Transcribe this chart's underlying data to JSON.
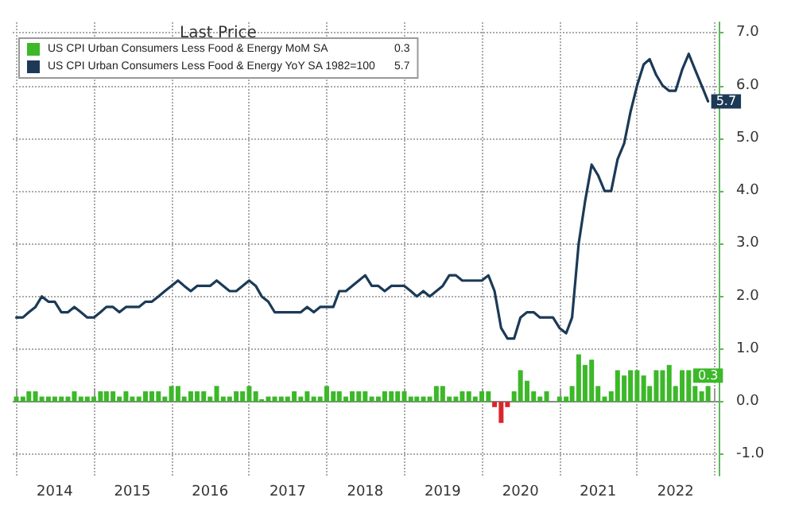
{
  "chart_data": {
    "type": "line",
    "legend_title": "Last Price",
    "x": [
      "2014-01",
      "2014-02",
      "2014-03",
      "2014-04",
      "2014-05",
      "2014-06",
      "2014-07",
      "2014-08",
      "2014-09",
      "2014-10",
      "2014-11",
      "2014-12",
      "2015-01",
      "2015-02",
      "2015-03",
      "2015-04",
      "2015-05",
      "2015-06",
      "2015-07",
      "2015-08",
      "2015-09",
      "2015-10",
      "2015-11",
      "2015-12",
      "2016-01",
      "2016-02",
      "2016-03",
      "2016-04",
      "2016-05",
      "2016-06",
      "2016-07",
      "2016-08",
      "2016-09",
      "2016-10",
      "2016-11",
      "2016-12",
      "2017-01",
      "2017-02",
      "2017-03",
      "2017-04",
      "2017-05",
      "2017-06",
      "2017-07",
      "2017-08",
      "2017-09",
      "2017-10",
      "2017-11",
      "2017-12",
      "2018-01",
      "2018-02",
      "2018-03",
      "2018-04",
      "2018-05",
      "2018-06",
      "2018-07",
      "2018-08",
      "2018-09",
      "2018-10",
      "2018-11",
      "2018-12",
      "2019-01",
      "2019-02",
      "2019-03",
      "2019-04",
      "2019-05",
      "2019-06",
      "2019-07",
      "2019-08",
      "2019-09",
      "2019-10",
      "2019-11",
      "2019-12",
      "2020-01",
      "2020-02",
      "2020-03",
      "2020-04",
      "2020-05",
      "2020-06",
      "2020-07",
      "2020-08",
      "2020-09",
      "2020-10",
      "2020-11",
      "2020-12",
      "2021-01",
      "2021-02",
      "2021-03",
      "2021-04",
      "2021-05",
      "2021-06",
      "2021-07",
      "2021-08",
      "2021-09",
      "2021-10",
      "2021-11",
      "2021-12",
      "2022-01",
      "2022-02",
      "2022-03",
      "2022-04",
      "2022-05",
      "2022-06",
      "2022-07",
      "2022-08",
      "2022-09",
      "2022-10",
      "2022-11",
      "2022-12"
    ],
    "series": [
      {
        "name": "US CPI Urban Consumers Less Food & Energy MoM SA",
        "type": "bar",
        "color": "#3cb829",
        "values": [
          0.1,
          0.1,
          0.2,
          0.2,
          0.1,
          0.1,
          0.1,
          0.1,
          0.1,
          0.2,
          0.1,
          0.1,
          0.1,
          0.2,
          0.2,
          0.2,
          0.1,
          0.2,
          0.1,
          0.1,
          0.2,
          0.2,
          0.2,
          0.1,
          0.3,
          0.3,
          0.1,
          0.2,
          0.2,
          0.2,
          0.1,
          0.3,
          0.1,
          0.1,
          0.2,
          0.2,
          0.3,
          0.2,
          0.05,
          0.1,
          0.1,
          0.1,
          0.1,
          0.2,
          0.1,
          0.2,
          0.1,
          0.1,
          0.3,
          0.2,
          0.2,
          0.1,
          0.2,
          0.2,
          0.2,
          0.1,
          0.1,
          0.2,
          0.2,
          0.2,
          0.2,
          0.1,
          0.1,
          0.1,
          0.1,
          0.3,
          0.3,
          0.1,
          0.1,
          0.2,
          0.2,
          0.1,
          0.2,
          0.2,
          -0.1,
          -0.4,
          -0.1,
          0.2,
          0.6,
          0.4,
          0.2,
          0.1,
          0.2,
          0.0,
          0.1,
          0.1,
          0.3,
          0.9,
          0.7,
          0.8,
          0.3,
          0.1,
          0.2,
          0.6,
          0.5,
          0.6,
          0.6,
          0.5,
          0.3,
          0.6,
          0.6,
          0.7,
          0.3,
          0.6,
          0.6,
          0.3,
          0.2,
          0.3
        ],
        "colors": [
          "#3cb829",
          "#3cb829",
          "#3cb829",
          "#3cb829",
          "#3cb829",
          "#3cb829",
          "#3cb829",
          "#3cb829",
          "#3cb829",
          "#3cb829",
          "#3cb829",
          "#3cb829",
          "#3cb829",
          "#3cb829",
          "#3cb829",
          "#3cb829",
          "#3cb829",
          "#3cb829",
          "#3cb829",
          "#3cb829",
          "#3cb829",
          "#3cb829",
          "#3cb829",
          "#3cb829",
          "#3cb829",
          "#3cb829",
          "#3cb829",
          "#3cb829",
          "#3cb829",
          "#3cb829",
          "#3cb829",
          "#3cb829",
          "#3cb829",
          "#3cb829",
          "#3cb829",
          "#3cb829",
          "#3cb829",
          "#3cb829",
          "#3cb829",
          "#3cb829",
          "#3cb829",
          "#3cb829",
          "#3cb829",
          "#3cb829",
          "#3cb829",
          "#3cb829",
          "#3cb829",
          "#3cb829",
          "#3cb829",
          "#3cb829",
          "#3cb829",
          "#3cb829",
          "#3cb829",
          "#3cb829",
          "#3cb829",
          "#3cb829",
          "#3cb829",
          "#3cb829",
          "#3cb829",
          "#3cb829",
          "#3cb829",
          "#3cb829",
          "#3cb829",
          "#3cb829",
          "#3cb829",
          "#3cb829",
          "#3cb829",
          "#3cb829",
          "#3cb829",
          "#3cb829",
          "#3cb829",
          "#3cb829",
          "#3cb829",
          "#3cb829",
          "#d9262c",
          "#d9262c",
          "#d9262c",
          "#3cb829",
          "#3cb829",
          "#3cb829",
          "#3cb829",
          "#3cb829",
          "#3cb829",
          "#3cb829",
          "#3cb829",
          "#3cb829",
          "#3cb829",
          "#3cb829",
          "#3cb829",
          "#3cb829",
          "#3cb829",
          "#3cb829",
          "#3cb829",
          "#3cb829",
          "#3cb829",
          "#3cb829",
          "#3cb829",
          "#3cb829",
          "#3cb829",
          "#3cb829",
          "#3cb829",
          "#3cb829",
          "#3cb829",
          "#3cb829",
          "#3cb829",
          "#3cb829",
          "#3cb829",
          "#3cb829"
        ],
        "value_labels": [
          null,
          null,
          null,
          null,
          null,
          null,
          null,
          null,
          null,
          null,
          null,
          null,
          null,
          null,
          null,
          null,
          null,
          null,
          null,
          null,
          null,
          null,
          null,
          null,
          null,
          null,
          null,
          null,
          null,
          null,
          null,
          null,
          null,
          null,
          null,
          null,
          null,
          null,
          null,
          null,
          null,
          null,
          null,
          null,
          null,
          null,
          null,
          null,
          null,
          null,
          null,
          null,
          null,
          null,
          null,
          null,
          null,
          null,
          null,
          null,
          null,
          null,
          null,
          null,
          null,
          null,
          null,
          null,
          null,
          null,
          null,
          null,
          null,
          null,
          null,
          null,
          null,
          null,
          null,
          null,
          null,
          null,
          null,
          null,
          null,
          null,
          null,
          null,
          null,
          null,
          null,
          null,
          null,
          null,
          null,
          null,
          null,
          null,
          null,
          null,
          null,
          null,
          null,
          null,
          null,
          null,
          null,
          "0.3"
        ]
      },
      {
        "name": "US CPI Urban Consumers Less Food & Energy YoY SA 1982=100",
        "color": "#1c3a57",
        "values": [
          1.6,
          1.6,
          1.7,
          1.8,
          2.0,
          1.9,
          1.9,
          1.7,
          1.7,
          1.8,
          1.7,
          1.6,
          1.6,
          1.7,
          1.8,
          1.8,
          1.7,
          1.8,
          1.8,
          1.8,
          1.9,
          1.9,
          2.0,
          2.1,
          2.2,
          2.3,
          2.2,
          2.1,
          2.2,
          2.2,
          2.2,
          2.3,
          2.2,
          2.1,
          2.1,
          2.2,
          2.3,
          2.2,
          2.0,
          1.9,
          1.7,
          1.7,
          1.7,
          1.7,
          1.7,
          1.8,
          1.7,
          1.8,
          1.8,
          1.8,
          2.1,
          2.1,
          2.2,
          2.3,
          2.4,
          2.2,
          2.2,
          2.1,
          2.2,
          2.2,
          2.2,
          2.1,
          2.0,
          2.1,
          2.0,
          2.1,
          2.2,
          2.4,
          2.4,
          2.3,
          2.3,
          2.3,
          2.3,
          2.4,
          2.1,
          1.4,
          1.2,
          1.2,
          1.6,
          1.7,
          1.7,
          1.6,
          1.6,
          1.6,
          1.4,
          1.3,
          1.6,
          3.0,
          3.8,
          4.5,
          4.3,
          4.0,
          4.0,
          4.6,
          4.9,
          5.5,
          6.0,
          6.4,
          6.5,
          6.2,
          6.0,
          5.9,
          5.9,
          6.3,
          6.6,
          6.3,
          6.0,
          5.7
        ],
        "value_labels": [
          null,
          null,
          null,
          null,
          null,
          null,
          null,
          null,
          null,
          null,
          null,
          null,
          null,
          null,
          null,
          null,
          null,
          null,
          null,
          null,
          null,
          null,
          null,
          null,
          null,
          null,
          null,
          null,
          null,
          null,
          null,
          null,
          null,
          null,
          null,
          null,
          null,
          null,
          null,
          null,
          null,
          null,
          null,
          null,
          null,
          null,
          null,
          null,
          null,
          null,
          null,
          null,
          null,
          null,
          null,
          null,
          null,
          null,
          null,
          null,
          null,
          null,
          null,
          null,
          null,
          null,
          null,
          null,
          null,
          null,
          null,
          null,
          null,
          null,
          null,
          null,
          null,
          null,
          null,
          null,
          null,
          null,
          null,
          null,
          null,
          null,
          null,
          null,
          null,
          null,
          null,
          null,
          null,
          null,
          null,
          null,
          null,
          null,
          null,
          null,
          null,
          null,
          null,
          null,
          null,
          null,
          null,
          "5.7"
        ]
      }
    ],
    "xlim": [
      "2013-12-15",
      "2023-01-20"
    ],
    "xticks": [
      {
        "value": "2014-01",
        "label": null
      },
      {
        "value": "2014-07",
        "label": "2014"
      },
      {
        "value": "2015-01",
        "label": null
      },
      {
        "value": "2015-07",
        "label": "2015"
      },
      {
        "value": "2016-01",
        "label": null
      },
      {
        "value": "2016-07",
        "label": "2016"
      },
      {
        "value": "2017-01",
        "label": null
      },
      {
        "value": "2017-07",
        "label": "2017"
      },
      {
        "value": "2018-01",
        "label": null
      },
      {
        "value": "2018-07",
        "label": "2018"
      },
      {
        "value": "2019-01",
        "label": null
      },
      {
        "value": "2019-07",
        "label": "2019"
      },
      {
        "value": "2020-01",
        "label": null
      },
      {
        "value": "2020-07",
        "label": "2020"
      },
      {
        "value": "2021-01",
        "label": null
      },
      {
        "value": "2021-07",
        "label": "2021"
      },
      {
        "value": "2022-01",
        "label": null
      },
      {
        "value": "2022-07",
        "label": "2022"
      },
      {
        "value": "2023-01",
        "label": null
      }
    ],
    "ylim": [
      -1.4,
      7.2
    ],
    "yticks": [
      {
        "value": -1,
        "label": "-1.0"
      },
      {
        "value": 0,
        "label": "0.0"
      },
      {
        "value": 1,
        "label": "1.0"
      },
      {
        "value": 2,
        "label": "2.0"
      },
      {
        "value": 3,
        "label": "3.0"
      },
      {
        "value": 4,
        "label": "4.0"
      },
      {
        "value": 5,
        "label": "5.0"
      },
      {
        "value": 6,
        "label": "6.0"
      },
      {
        "value": 7,
        "label": "7.0"
      }
    ],
    "grid": true,
    "legend": "top left",
    "line_style": "solid",
    "marker": "none"
  }
}
